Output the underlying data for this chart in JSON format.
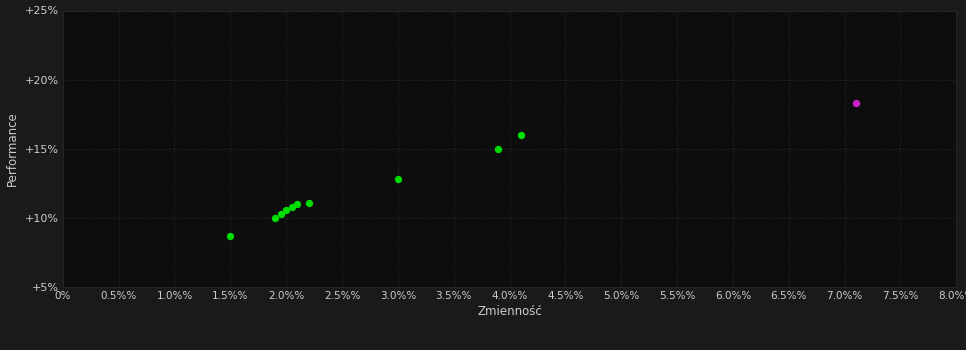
{
  "background_color": "#1a1a1a",
  "plot_bg_color": "#0d0d0d",
  "grid_color": "#2a2a2a",
  "text_color": "#cccccc",
  "xlabel": "Zmienność",
  "ylabel": "Performance",
  "xlim": [
    0.0,
    0.08
  ],
  "ylim": [
    0.05,
    0.25
  ],
  "xticks": [
    0.0,
    0.005,
    0.01,
    0.015,
    0.02,
    0.025,
    0.03,
    0.035,
    0.04,
    0.045,
    0.05,
    0.055,
    0.06,
    0.065,
    0.07,
    0.075,
    0.08
  ],
  "yticks": [
    0.05,
    0.1,
    0.15,
    0.2,
    0.25
  ],
  "green_points": [
    [
      0.015,
      0.087
    ],
    [
      0.019,
      0.1
    ],
    [
      0.0195,
      0.103
    ],
    [
      0.02,
      0.106
    ],
    [
      0.0205,
      0.108
    ],
    [
      0.021,
      0.11
    ],
    [
      0.022,
      0.111
    ],
    [
      0.03,
      0.128
    ],
    [
      0.039,
      0.15
    ],
    [
      0.041,
      0.16
    ]
  ],
  "magenta_points": [
    [
      0.071,
      0.183
    ]
  ],
  "green_color": "#00dd00",
  "magenta_color": "#cc22cc",
  "marker_size": 28
}
